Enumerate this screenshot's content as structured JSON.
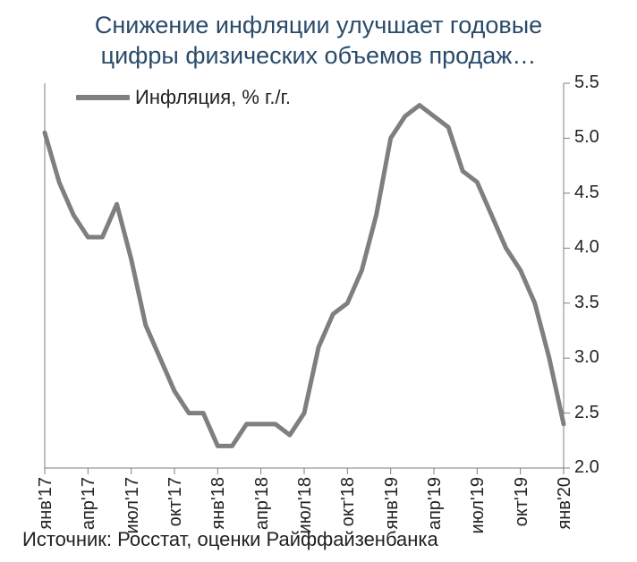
{
  "title_line1": "Снижение инфляции улучшает годовые",
  "title_line2": "цифры физических объемов продаж…",
  "source": "Источник: Росстат, оценки Райффайзенбанка",
  "chart": {
    "type": "line",
    "legend_label": "Инфляция, % г./г.",
    "line_color": "#7f7f7f",
    "line_width": 5,
    "background_color": "#ffffff",
    "title_color": "#2a4b6a",
    "title_fontsize": 27,
    "label_fontsize": 20,
    "ylim": [
      2.0,
      5.5
    ],
    "ytick_step": 0.5,
    "yticks": [
      "2.0",
      "2.5",
      "3.0",
      "3.5",
      "4.0",
      "4.5",
      "5.0",
      "5.5"
    ],
    "xticks": [
      "янв'17",
      "апр'17",
      "июл'17",
      "окт'17",
      "янв'18",
      "апр'18",
      "июл'18",
      "окт'18",
      "янв'19",
      "апр'19",
      "июл'19",
      "окт'19",
      "янв'20"
    ],
    "grid": false,
    "y_axis_side": "right",
    "data": {
      "x": [
        "янв'17",
        "фев'17",
        "мар'17",
        "апр'17",
        "май'17",
        "июн'17",
        "июл'17",
        "авг'17",
        "сен'17",
        "окт'17",
        "ноя'17",
        "дек'17",
        "янв'18",
        "фев'18",
        "мар'18",
        "апр'18",
        "май'18",
        "июн'18",
        "июл'18",
        "авг'18",
        "сен'18",
        "окт'18",
        "ноя'18",
        "дек'18",
        "янв'19",
        "фев'19",
        "мар'19",
        "апр'19",
        "май'19",
        "июн'19",
        "июл'19",
        "авг'19",
        "сен'19",
        "окт'19",
        "ноя'19",
        "дек'19",
        "янв'20"
      ],
      "y": [
        5.05,
        4.6,
        4.3,
        4.1,
        4.1,
        4.4,
        3.9,
        3.3,
        3.0,
        2.7,
        2.5,
        2.5,
        2.2,
        2.2,
        2.4,
        2.4,
        2.4,
        2.3,
        2.5,
        3.1,
        3.4,
        3.5,
        3.8,
        4.3,
        5.0,
        5.2,
        5.3,
        5.2,
        5.1,
        4.7,
        4.6,
        4.3,
        4.0,
        3.8,
        3.5,
        3.0,
        2.4
      ]
    }
  }
}
